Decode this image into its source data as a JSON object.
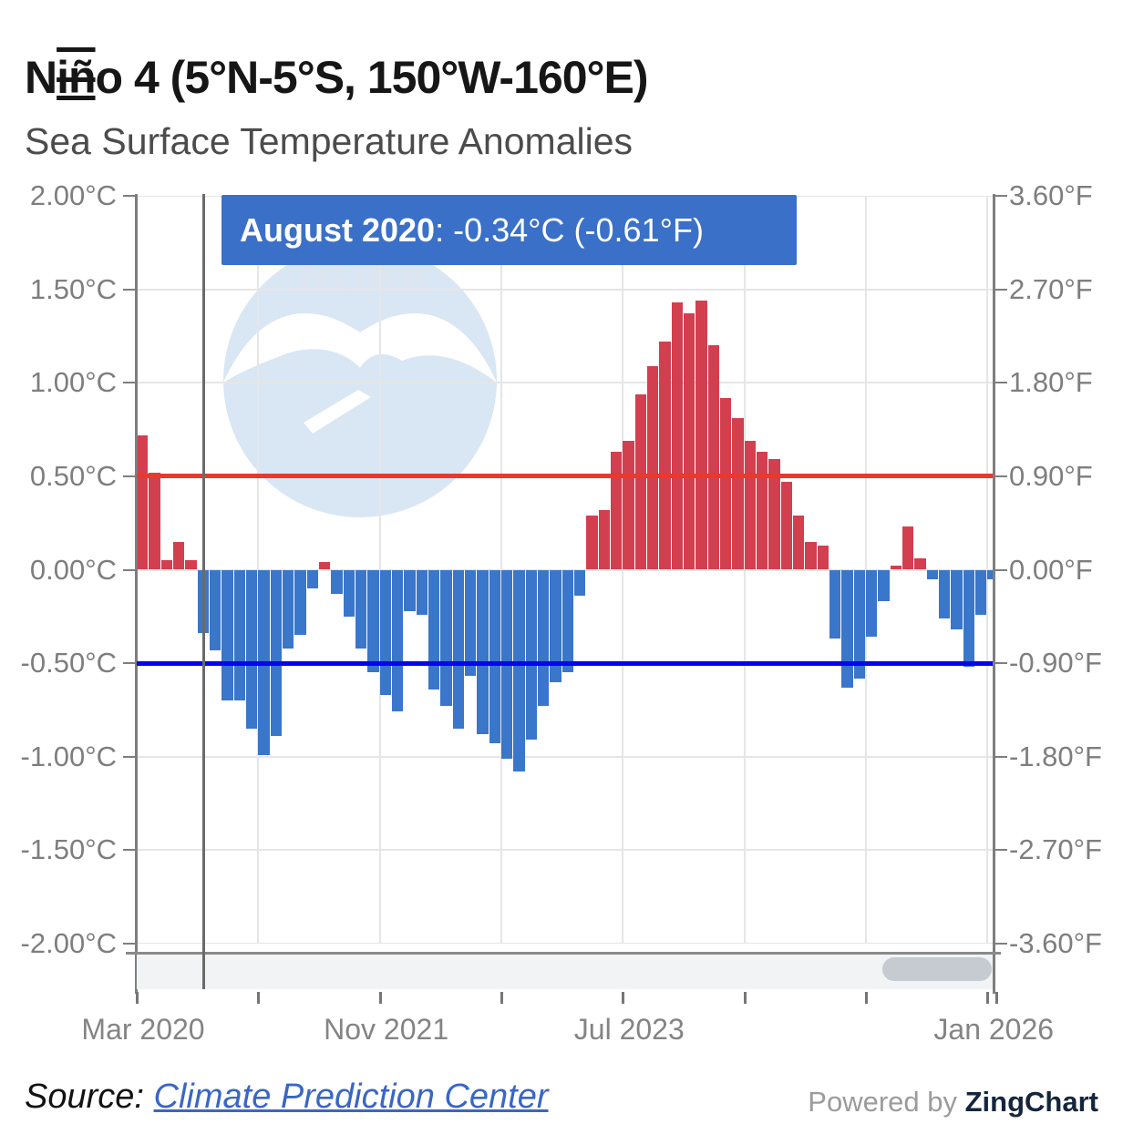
{
  "header": {
    "title_part1": "N",
    "title_part2_glitched": "iñ",
    "title_part3": "o 4 (5°N-5°S, 150°W-160°E)",
    "subtitle": "Sea Surface Temperature Anomalies"
  },
  "tooltip": {
    "month_label": "August 2020",
    "value_text": ": -0.34°C (-0.61°F)"
  },
  "watermark": {
    "text": "NOAA"
  },
  "axes": {
    "left_ticks": [
      {
        "label": "2.00°C",
        "value": 2.0
      },
      {
        "label": "1.50°C",
        "value": 1.5
      },
      {
        "label": "1.00°C",
        "value": 1.0
      },
      {
        "label": "0.50°C",
        "value": 0.5
      },
      {
        "label": "0.00°C",
        "value": 0.0
      },
      {
        "label": "-0.50°C",
        "value": -0.5
      },
      {
        "label": "-1.00°C",
        "value": -1.0
      },
      {
        "label": "-1.50°C",
        "value": -1.5
      },
      {
        "label": "-2.00°C",
        "value": -2.0
      }
    ],
    "right_ticks": [
      {
        "label": "3.60°F",
        "value": 3.6
      },
      {
        "label": "2.70°F",
        "value": 2.7
      },
      {
        "label": "1.80°F",
        "value": 1.8
      },
      {
        "label": "0.90°F",
        "value": 0.9
      },
      {
        "label": "0.00°F",
        "value": 0.0
      },
      {
        "label": "-0.90°F",
        "value": -0.9
      },
      {
        "label": "-1.80°F",
        "value": -1.8
      },
      {
        "label": "-2.70°F",
        "value": -2.7
      },
      {
        "label": "-3.60°F",
        "value": -3.6
      }
    ],
    "x_labels": [
      {
        "label": "Mar 2020",
        "month_index": 0
      },
      {
        "label": "Nov 2021",
        "month_index": 20
      },
      {
        "label": "Jul 2023",
        "month_index": 40
      },
      {
        "label": "Jan 2026",
        "month_index": 70
      }
    ],
    "bottom_tick_month_indices": [
      0,
      10,
      20,
      30,
      40,
      50,
      60,
      70
    ]
  },
  "chart_data": {
    "type": "bar",
    "title": "Niño 4 (5°N-5°S, 150°W-160°E)",
    "subtitle": "Sea Surface Temperature Anomalies",
    "ylabel": "°C",
    "y2label": "°F",
    "ylim": [
      -2.0,
      2.0
    ],
    "y2lim": [
      -3.6,
      3.6
    ],
    "grid": true,
    "positive_color": "#d23f4f",
    "negative_color": "#3a76c9",
    "highlighted_index": 5,
    "highlighted_point": {
      "month": "August 2020",
      "value_c": -0.34,
      "value_f": -0.61
    },
    "reference_lines": [
      {
        "value": 0.5,
        "color": "#e8392c"
      },
      {
        "value": -0.5,
        "color": "#0404f0"
      }
    ],
    "x": [
      "Mar 2020",
      "Apr 2020",
      "May 2020",
      "Jun 2020",
      "Jul 2020",
      "Aug 2020",
      "Sep 2020",
      "Oct 2020",
      "Nov 2020",
      "Dec 2020",
      "Jan 2021",
      "Feb 2021",
      "Mar 2021",
      "Apr 2021",
      "May 2021",
      "Jun 2021",
      "Jul 2021",
      "Aug 2021",
      "Sep 2021",
      "Oct 2021",
      "Nov 2021",
      "Dec 2021",
      "Jan 2022",
      "Feb 2022",
      "Mar 2022",
      "Apr 2022",
      "May 2022",
      "Jun 2022",
      "Jul 2022",
      "Aug 2022",
      "Sep 2022",
      "Oct 2022",
      "Nov 2022",
      "Dec 2022",
      "Jan 2023",
      "Feb 2023",
      "Mar 2023",
      "Apr 2023",
      "May 2023",
      "Jun 2023",
      "Jul 2023",
      "Aug 2023",
      "Sep 2023",
      "Oct 2023",
      "Nov 2023",
      "Dec 2023",
      "Jan 2024",
      "Feb 2024",
      "Mar 2024",
      "Apr 2024",
      "May 2024",
      "Jun 2024",
      "Jul 2024",
      "Aug 2024",
      "Sep 2024",
      "Oct 2024",
      "Nov 2024",
      "Dec 2024",
      "Jan 2025",
      "Feb 2025",
      "Mar 2025",
      "Apr 2025",
      "May 2025",
      "Jun 2025",
      "Jul 2025",
      "Aug 2025",
      "Sep 2025",
      "Oct 2025",
      "Nov 2025",
      "Dec 2025",
      "Jan 2026"
    ],
    "values": [
      0.72,
      0.52,
      0.05,
      0.15,
      0.05,
      -0.34,
      -0.43,
      -0.7,
      -0.7,
      -0.85,
      -0.99,
      -0.89,
      -0.42,
      -0.35,
      -0.1,
      0.04,
      -0.13,
      -0.25,
      -0.42,
      -0.55,
      -0.67,
      -0.76,
      -0.22,
      -0.24,
      -0.64,
      -0.73,
      -0.85,
      -0.57,
      -0.88,
      -0.93,
      -1.01,
      -1.08,
      -0.91,
      -0.73,
      -0.6,
      -0.55,
      -0.14,
      0.29,
      0.32,
      0.63,
      0.69,
      0.94,
      1.09,
      1.22,
      1.43,
      1.37,
      1.44,
      1.2,
      0.92,
      0.81,
      0.69,
      0.63,
      0.59,
      0.47,
      0.29,
      0.15,
      0.13,
      -0.37,
      -0.63,
      -0.58,
      -0.36,
      -0.17,
      0.02,
      0.23,
      0.06,
      -0.05,
      -0.26,
      -0.32,
      -0.52,
      -0.24,
      -0.05
    ]
  },
  "footer": {
    "source_label": "Source: ",
    "source_link": "Climate Prediction Center",
    "powered_by": "Powered by ",
    "brand": "ZingChart"
  }
}
